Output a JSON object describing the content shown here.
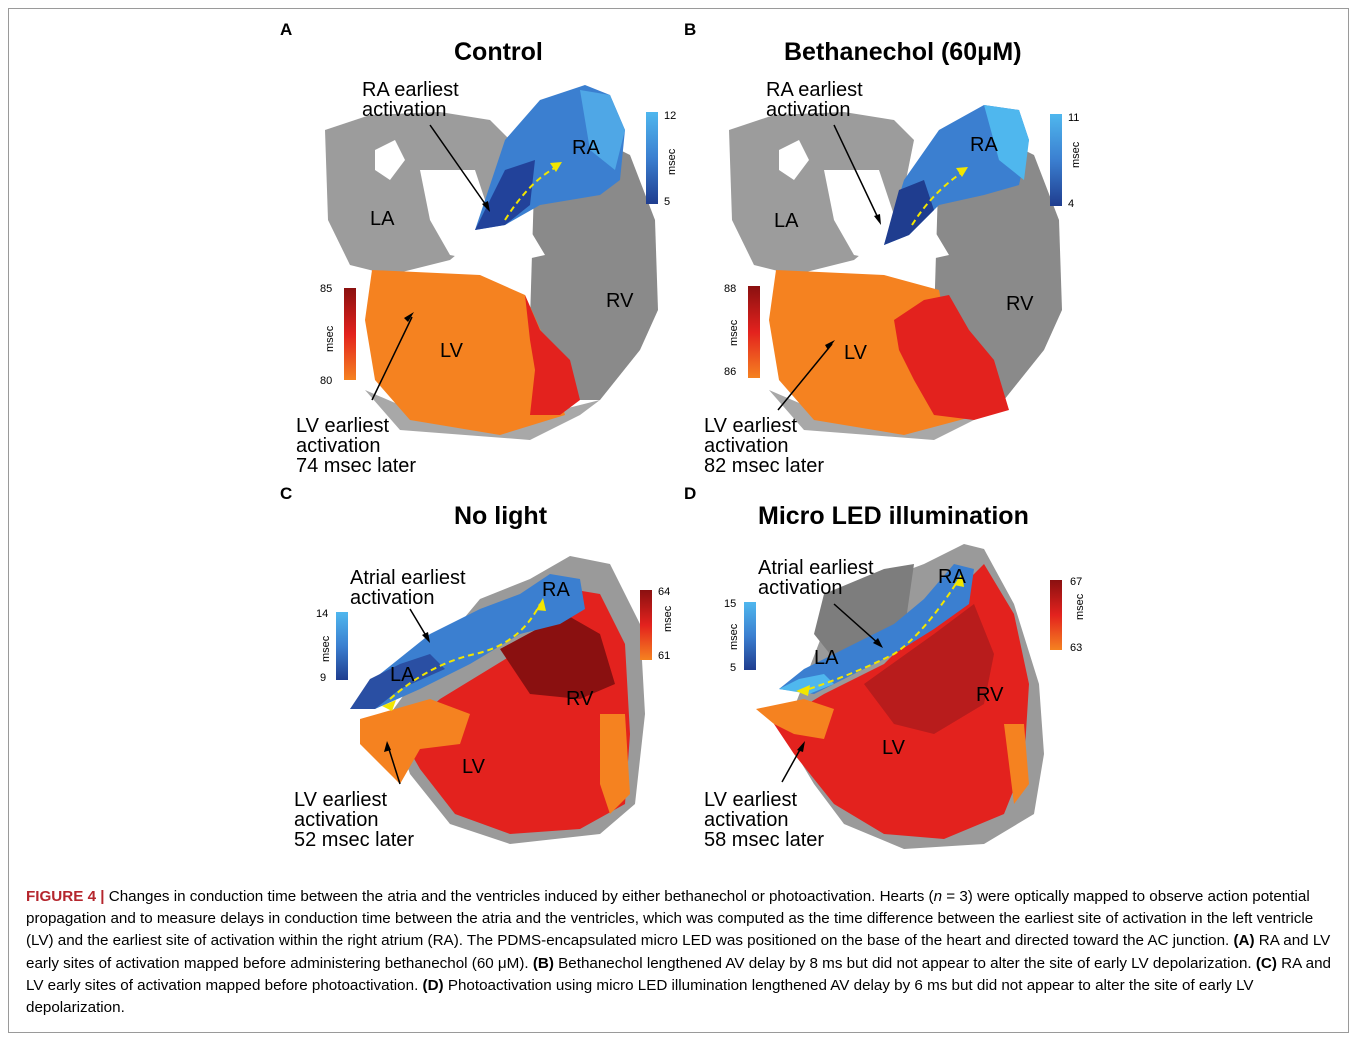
{
  "panels": [
    {
      "letter": "A",
      "title": "Control",
      "top_note": [
        "RA earliest",
        "activation"
      ],
      "bottom_note": [
        "LV earliest",
        "activation",
        "74 msec later"
      ],
      "chambers": [
        "RA",
        "LA",
        "RV",
        "LV"
      ],
      "atrial_scale": {
        "max": "12",
        "min": "5",
        "unit": "msec"
      },
      "ventricular_scale": {
        "max": "85",
        "min": "80",
        "unit": "msec"
      }
    },
    {
      "letter": "B",
      "title": "Bethanechol (60μM)",
      "top_note": [
        "RA earliest",
        "activation"
      ],
      "bottom_note": [
        "LV earliest",
        "activation",
        "82 msec later"
      ],
      "chambers": [
        "RA",
        "LA",
        "RV",
        "LV"
      ],
      "atrial_scale": {
        "max": "11",
        "min": "4",
        "unit": "msec"
      },
      "ventricular_scale": {
        "max": "88",
        "min": "86",
        "unit": "msec"
      }
    },
    {
      "letter": "C",
      "title": "No light",
      "top_note": [
        "Atrial earliest",
        "activation"
      ],
      "bottom_note": [
        "LV earliest",
        "activation",
        "52 msec later"
      ],
      "chambers": [
        "RA",
        "LA",
        "RV",
        "LV"
      ],
      "atrial_scale": {
        "max": "14",
        "min": "9",
        "unit": "msec"
      },
      "ventricular_scale": {
        "max": "64",
        "min": "61",
        "unit": "msec"
      }
    },
    {
      "letter": "D",
      "title": "Micro LED illumination",
      "top_note": [
        "Atrial earliest",
        "activation"
      ],
      "bottom_note": [
        "LV earliest",
        "activation",
        "58 msec later"
      ],
      "chambers": [
        "RA",
        "LA",
        "RV",
        "LV"
      ],
      "atrial_scale": {
        "max": "15",
        "min": "5",
        "unit": "msec"
      },
      "ventricular_scale": {
        "max": "67",
        "min": "63",
        "unit": "msec"
      }
    }
  ],
  "colors": {
    "tissue_gray": "#9a9a9a",
    "blue_dark": "#1f3d8f",
    "blue_light": "#3f9be0",
    "red_dark": "#8a1010",
    "red": "#e3221e",
    "orange": "#f58220",
    "arrow_yellow": "#f2e600",
    "caption_label": "#b5262d"
  },
  "caption": {
    "figure_label": "FIGURE 4 |",
    "text_1": " Changes in conduction time between the atria and the ventricles induced by either bethanechol or photoactivation. Hearts (",
    "n_symbol": "n",
    "text_2": " = 3) were optically mapped to observe action potential propagation and to measure delays in conduction time between the atria and the ventricles, which was computed as the time difference between the earliest site of activation in the left ventricle (LV) and the earliest site of activation within the right atrium (RA). The PDMS-encapsulated micro LED was positioned on the base of the heart and directed toward the AC junction. ",
    "label_a": "(A)",
    "text_a": " RA and LV early sites of activation mapped before administering bethanechol (60 μM). ",
    "label_b": "(B)",
    "text_b": " Bethanechol lengthened AV delay by 8 ms but did not appear to alter the site of early LV depolarization. ",
    "label_c": "(C)",
    "text_c": " RA and LV early sites of activation mapped before photoactivation. ",
    "label_d": "(D)",
    "text_d": " Photoactivation using micro LED illumination lengthened AV delay by 6 ms but did not appear to alter the site of early LV depolarization."
  }
}
